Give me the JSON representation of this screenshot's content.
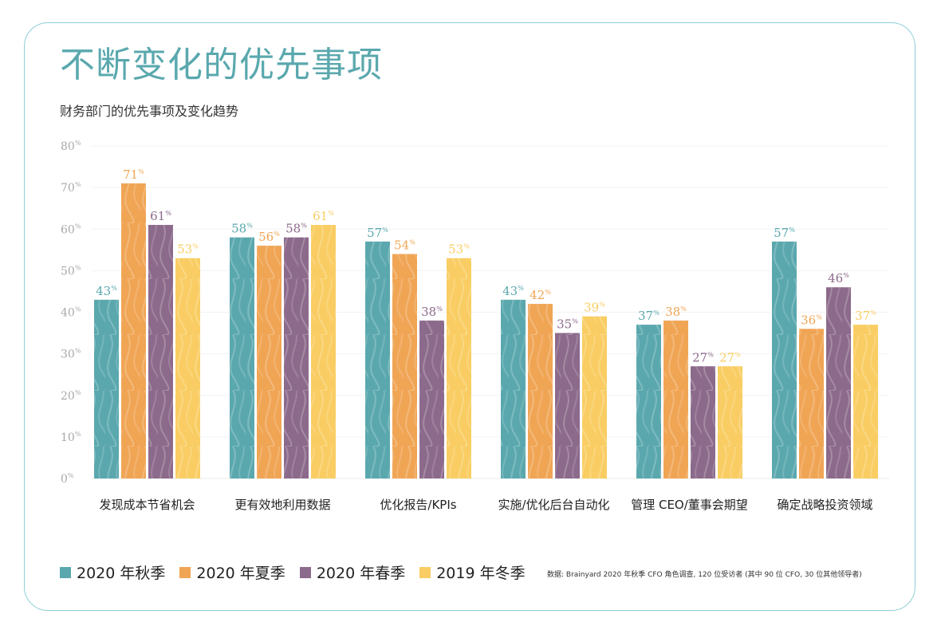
{
  "title": "不断变化的优先事项",
  "subtitle": "财务部门的优先事项及变化趋势",
  "source": "数据: Brainyard 2020 年秋季 CFO 角色调查, 120 位受访者 (其中 90 位 CFO, 30 位其他领导者)",
  "colors": {
    "autumn2020": "#5aa8ae",
    "summer2020": "#f0a555",
    "spring2020": "#8c6a8b",
    "winter2019": "#f9cd63",
    "title": "#5aa8ae",
    "border": "#8fd0d6"
  },
  "chart_data": {
    "type": "bar",
    "categories": [
      "发现成本节省机会",
      "更有效地利用数据",
      "优化报告/KPIs",
      "实施/优化后台自动化",
      "管理 CEO/董事会期望",
      "确定战略投资领域"
    ],
    "series": [
      {
        "name": "2020 年秋季",
        "values": [
          43,
          58,
          57,
          43,
          37,
          57
        ]
      },
      {
        "name": "2020 年夏季",
        "values": [
          71,
          56,
          54,
          42,
          38,
          36
        ]
      },
      {
        "name": "2020 年春季",
        "values": [
          61,
          58,
          38,
          35,
          27,
          46
        ]
      },
      {
        "name": "2019 年冬季",
        "values": [
          53,
          61,
          53,
          39,
          27,
          37
        ]
      }
    ],
    "yticks": [
      "0",
      "10",
      "20",
      "30",
      "40",
      "50",
      "60",
      "70",
      "80"
    ],
    "unit": "%",
    "ylim": [
      0,
      80
    ],
    "legend_position": "bottom-left",
    "grid": true
  }
}
